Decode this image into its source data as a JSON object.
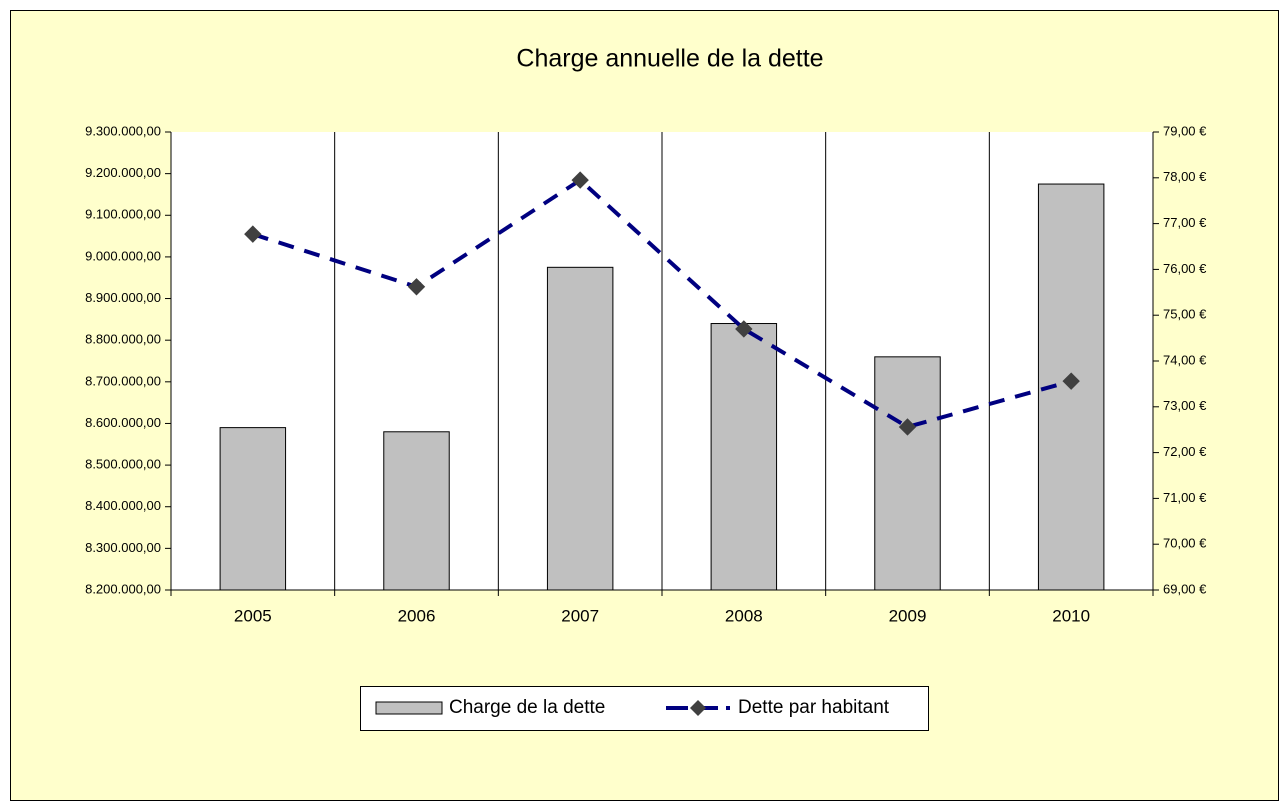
{
  "chart_data": {
    "type": "bar",
    "title": "Charge annuelle de la dette",
    "categories": [
      "2005",
      "2006",
      "2007",
      "2008",
      "2009",
      "2010"
    ],
    "series": [
      {
        "name": "Charge de la dette",
        "type": "bar",
        "color": "#c0c0c0",
        "values": [
          8590000,
          8580000,
          8975000,
          8840000,
          8760000,
          9175000
        ]
      },
      {
        "name": "Dette par habitant",
        "type": "line",
        "axis": "y2",
        "color": "#000080",
        "marker_color": "#404040",
        "values": [
          76.77,
          75.62,
          77.95,
          74.7,
          72.56,
          73.56
        ]
      }
    ],
    "ylim": [
      8200000,
      9300000
    ],
    "yticks": [
      {
        "value": 8200000,
        "label": "8.200.000,00"
      },
      {
        "value": 8300000,
        "label": "8.300.000,00"
      },
      {
        "value": 8400000,
        "label": "8.400.000,00"
      },
      {
        "value": 8500000,
        "label": "8.500.000,00"
      },
      {
        "value": 8600000,
        "label": "8.600.000,00"
      },
      {
        "value": 8700000,
        "label": "8.700.000,00"
      },
      {
        "value": 8800000,
        "label": "8.800.000,00"
      },
      {
        "value": 8900000,
        "label": "8.900.000,00"
      },
      {
        "value": 9000000,
        "label": "9.000.000,00"
      },
      {
        "value": 9100000,
        "label": "9.100.000,00"
      },
      {
        "value": 9200000,
        "label": "9.200.000,00"
      },
      {
        "value": 9300000,
        "label": "9.300.000,00"
      }
    ],
    "y2lim": [
      69,
      79
    ],
    "y2ticks": [
      {
        "value": 69,
        "label": "69,00 €"
      },
      {
        "value": 70,
        "label": "70,00 €"
      },
      {
        "value": 71,
        "label": "71,00 €"
      },
      {
        "value": 72,
        "label": "72,00 €"
      },
      {
        "value": 73,
        "label": "73,00 €"
      },
      {
        "value": 74,
        "label": "74,00 €"
      },
      {
        "value": 75,
        "label": "75,00 €"
      },
      {
        "value": 76,
        "label": "76,00 €"
      },
      {
        "value": 77,
        "label": "77,00 €"
      },
      {
        "value": 78,
        "label": "78,00 €"
      },
      {
        "value": 79,
        "label": "79,00 €"
      }
    ],
    "legend": "bottom",
    "background": "#ffffcc"
  }
}
